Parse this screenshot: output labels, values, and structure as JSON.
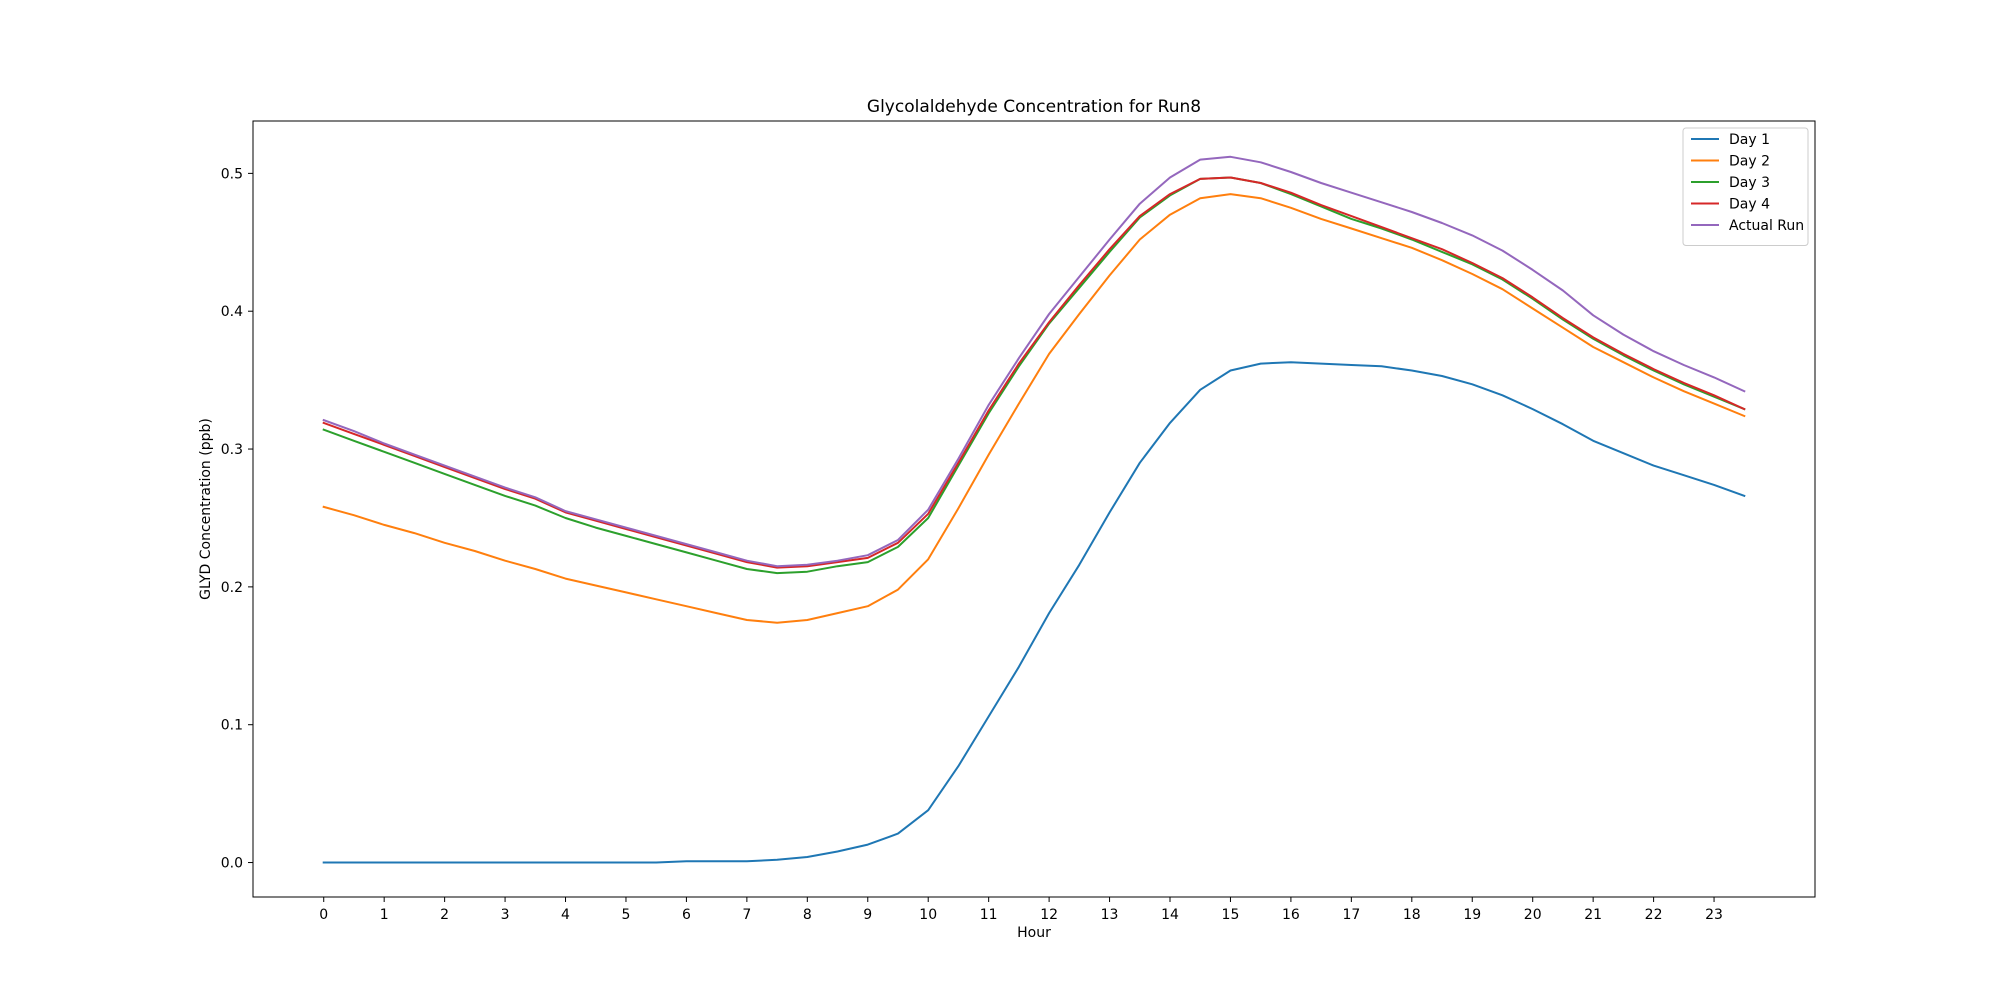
{
  "chart_data": {
    "type": "line",
    "title": "Glycolaldehyde Concentration for Run8",
    "xlabel": "Hour",
    "ylabel": "GLYD Concentration (ppb)",
    "xlim": [
      -1.17,
      24.67
    ],
    "ylim": [
      -0.025,
      0.538
    ],
    "x": [
      0,
      0.5,
      1,
      1.5,
      2,
      2.5,
      3,
      3.5,
      4,
      4.5,
      5,
      5.5,
      6,
      6.5,
      7,
      7.5,
      8,
      8.5,
      9,
      9.5,
      10,
      10.5,
      11,
      11.5,
      12,
      12.5,
      13,
      13.5,
      14,
      14.5,
      15,
      15.5,
      16,
      16.5,
      17,
      17.5,
      18,
      18.5,
      19,
      19.5,
      20,
      20.5,
      21,
      21.5,
      22,
      22.5,
      23,
      23.5
    ],
    "x_ticks": [
      0,
      1,
      2,
      3,
      4,
      5,
      6,
      7,
      8,
      9,
      10,
      11,
      12,
      13,
      14,
      15,
      16,
      17,
      18,
      19,
      20,
      21,
      22,
      23
    ],
    "x_tick_labels": [
      "0",
      "1",
      "2",
      "3",
      "4",
      "5",
      "6",
      "7",
      "8",
      "9",
      "10",
      "11",
      "12",
      "13",
      "14",
      "15",
      "16",
      "17",
      "18",
      "19",
      "20",
      "21",
      "22",
      "23"
    ],
    "y_ticks": [
      0.0,
      0.1,
      0.2,
      0.3,
      0.4,
      0.5
    ],
    "y_tick_labels": [
      "0.0",
      "0.1",
      "0.2",
      "0.3",
      "0.4",
      "0.5"
    ],
    "grid": false,
    "legend_position": "top-right",
    "series": [
      {
        "name": "Day 1",
        "color": "#1f77b4",
        "values": [
          0.0,
          0.0,
          0.0,
          0.0,
          0.0,
          0.0,
          0.0,
          0.0,
          0.0,
          0.0,
          0.0,
          0.0,
          0.001,
          0.001,
          0.001,
          0.002,
          0.004,
          0.008,
          0.013,
          0.021,
          0.038,
          0.07,
          0.106,
          0.142,
          0.181,
          0.216,
          0.254,
          0.29,
          0.319,
          0.343,
          0.357,
          0.362,
          0.363,
          0.362,
          0.361,
          0.36,
          0.357,
          0.353,
          0.347,
          0.339,
          0.329,
          0.318,
          0.306,
          0.297,
          0.288,
          0.281,
          0.274,
          0.266
        ]
      },
      {
        "name": "Day 2",
        "color": "#ff7f0e",
        "values": [
          0.258,
          0.252,
          0.245,
          0.239,
          0.232,
          0.226,
          0.219,
          0.213,
          0.206,
          0.201,
          0.196,
          0.191,
          0.186,
          0.181,
          0.176,
          0.174,
          0.176,
          0.181,
          0.186,
          0.198,
          0.22,
          0.257,
          0.296,
          0.333,
          0.369,
          0.398,
          0.426,
          0.452,
          0.47,
          0.482,
          0.485,
          0.482,
          0.475,
          0.467,
          0.46,
          0.453,
          0.446,
          0.437,
          0.427,
          0.416,
          0.402,
          0.388,
          0.374,
          0.363,
          0.352,
          0.342,
          0.333,
          0.324
        ]
      },
      {
        "name": "Day 3",
        "color": "#2ca02c",
        "values": [
          0.314,
          0.306,
          0.298,
          0.29,
          0.282,
          0.274,
          0.266,
          0.259,
          0.25,
          0.243,
          0.237,
          0.231,
          0.225,
          0.219,
          0.213,
          0.21,
          0.211,
          0.215,
          0.218,
          0.229,
          0.25,
          0.288,
          0.326,
          0.36,
          0.391,
          0.417,
          0.443,
          0.468,
          0.484,
          0.496,
          0.497,
          0.493,
          0.485,
          0.476,
          0.467,
          0.46,
          0.452,
          0.443,
          0.434,
          0.423,
          0.409,
          0.394,
          0.38,
          0.368,
          0.357,
          0.347,
          0.338,
          0.329
        ]
      },
      {
        "name": "Day 4",
        "color": "#d62728",
        "values": [
          0.319,
          0.311,
          0.303,
          0.295,
          0.287,
          0.279,
          0.271,
          0.264,
          0.254,
          0.248,
          0.242,
          0.236,
          0.23,
          0.224,
          0.218,
          0.214,
          0.215,
          0.218,
          0.221,
          0.232,
          0.253,
          0.29,
          0.328,
          0.362,
          0.392,
          0.419,
          0.445,
          0.469,
          0.485,
          0.496,
          0.497,
          0.493,
          0.486,
          0.477,
          0.469,
          0.461,
          0.453,
          0.445,
          0.435,
          0.424,
          0.41,
          0.395,
          0.381,
          0.369,
          0.358,
          0.348,
          0.339,
          0.329
        ]
      },
      {
        "name": "Actual Run",
        "color": "#9467bd",
        "values": [
          0.321,
          0.313,
          0.304,
          0.296,
          0.288,
          0.28,
          0.272,
          0.265,
          0.255,
          0.249,
          0.243,
          0.237,
          0.231,
          0.225,
          0.219,
          0.215,
          0.216,
          0.219,
          0.223,
          0.234,
          0.256,
          0.293,
          0.332,
          0.366,
          0.398,
          0.425,
          0.452,
          0.478,
          0.497,
          0.51,
          0.512,
          0.508,
          0.501,
          0.493,
          0.486,
          0.479,
          0.472,
          0.464,
          0.455,
          0.444,
          0.43,
          0.415,
          0.397,
          0.383,
          0.371,
          0.361,
          0.352,
          0.342
        ]
      }
    ]
  }
}
